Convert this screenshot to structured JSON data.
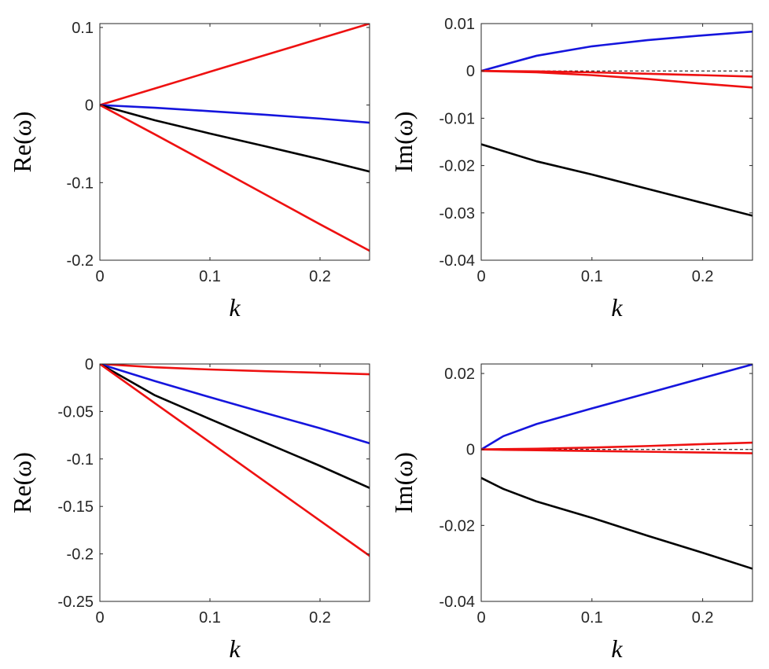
{
  "colors": {
    "red": "#ee1111",
    "blue": "#1515dd",
    "black": "#000000",
    "axis": "#262626",
    "zero": "#000000"
  },
  "chart_data": [
    {
      "type": "line",
      "id": "top-left",
      "xlabel": "k",
      "ylabel": "Re(ω)",
      "xlim": [
        0,
        0.245
      ],
      "ylim": [
        -0.2,
        0.105
      ],
      "xticks": [
        0,
        0.1,
        0.2
      ],
      "xtick_labels": [
        "0",
        "0.1",
        "0.2"
      ],
      "yticks": [
        -0.2,
        -0.1,
        0,
        0.1
      ],
      "ytick_labels": [
        "-0.2",
        "-0.1",
        "0",
        "0.1"
      ],
      "x": [
        0,
        0.05,
        0.1,
        0.15,
        0.2,
        0.245
      ],
      "series": [
        {
          "name": "red-upper",
          "color": "red",
          "values": [
            0,
            0.0214,
            0.0429,
            0.0643,
            0.0857,
            0.105
          ]
        },
        {
          "name": "blue",
          "color": "blue",
          "values": [
            0,
            -0.0035,
            -0.0079,
            -0.0125,
            -0.0175,
            -0.0227
          ]
        },
        {
          "name": "black",
          "color": "black",
          "values": [
            0,
            -0.0196,
            -0.0367,
            -0.0531,
            -0.0698,
            -0.0857
          ]
        },
        {
          "name": "red-lower",
          "color": "red",
          "values": [
            0,
            -0.0378,
            -0.0763,
            -0.115,
            -0.1537,
            -0.1878
          ]
        }
      ]
    },
    {
      "type": "line",
      "id": "top-right",
      "xlabel": "k",
      "ylabel": "Im(ω)",
      "xlim": [
        0,
        0.245
      ],
      "ylim": [
        -0.04,
        0.01
      ],
      "xticks": [
        0,
        0.1,
        0.2
      ],
      "xtick_labels": [
        "0",
        "0.1",
        "0.2"
      ],
      "yticks": [
        -0.04,
        -0.03,
        -0.02,
        -0.01,
        0,
        0.01
      ],
      "ytick_labels": [
        "-0.04",
        "-0.03",
        "-0.02",
        "-0.01",
        "0",
        "0.01"
      ],
      "zero_line": true,
      "x": [
        0,
        0.05,
        0.1,
        0.15,
        0.2,
        0.245
      ],
      "series": [
        {
          "name": "blue",
          "color": "blue",
          "values": [
            0,
            0.0032,
            0.0052,
            0.0065,
            0.0075,
            0.0083
          ]
        },
        {
          "name": "red-upper",
          "color": "red",
          "values": [
            0,
            -0.0001,
            -0.0003,
            -0.0006,
            -0.0009,
            -0.0012
          ]
        },
        {
          "name": "red-lower",
          "color": "red",
          "values": [
            0,
            -0.0003,
            -0.0009,
            -0.0017,
            -0.0027,
            -0.0035
          ]
        },
        {
          "name": "black",
          "color": "black",
          "values": [
            -0.0155,
            -0.0191,
            -0.0219,
            -0.0249,
            -0.0279,
            -0.0306
          ]
        }
      ]
    },
    {
      "type": "line",
      "id": "bottom-left",
      "xlabel": "k",
      "ylabel": "Re(ω)",
      "xlim": [
        0,
        0.245
      ],
      "ylim": [
        -0.25,
        0
      ],
      "xticks": [
        0,
        0.1,
        0.2
      ],
      "xtick_labels": [
        "0",
        "0.1",
        "0.2"
      ],
      "yticks": [
        -0.25,
        -0.2,
        -0.15,
        -0.1,
        -0.05,
        0
      ],
      "ytick_labels": [
        "-0.25",
        "-0.2",
        "-0.15",
        "-0.1",
        "-0.05",
        "0"
      ],
      "x": [
        0,
        0.05,
        0.1,
        0.15,
        0.2,
        0.245
      ],
      "series": [
        {
          "name": "red-upper",
          "color": "red",
          "values": [
            0,
            -0.0035,
            -0.0058,
            -0.0076,
            -0.0093,
            -0.0108
          ]
        },
        {
          "name": "blue",
          "color": "blue",
          "values": [
            0,
            -0.018,
            -0.035,
            -0.0515,
            -0.0677,
            -0.0835
          ]
        },
        {
          "name": "black",
          "color": "black",
          "values": [
            0,
            -0.033,
            -0.058,
            -0.0827,
            -0.1073,
            -0.1305
          ]
        },
        {
          "name": "red-lower",
          "color": "red",
          "values": [
            0,
            -0.0413,
            -0.0825,
            -0.1238,
            -0.165,
            -0.202
          ]
        }
      ]
    },
    {
      "type": "line",
      "id": "bottom-right",
      "xlabel": "k",
      "ylabel": "Im(ω)",
      "xlim": [
        0,
        0.245
      ],
      "ylim": [
        -0.04,
        0.0225
      ],
      "xticks": [
        0,
        0.1,
        0.2
      ],
      "xtick_labels": [
        "0",
        "0.1",
        "0.2"
      ],
      "yticks": [
        -0.04,
        -0.02,
        0,
        0.02
      ],
      "ytick_labels": [
        "-0.04",
        "-0.02",
        "0",
        "0.02"
      ],
      "zero_line": true,
      "x": [
        0,
        0.02,
        0.05,
        0.1,
        0.15,
        0.2,
        0.245
      ],
      "series": [
        {
          "name": "blue",
          "color": "blue",
          "values": [
            0,
            0.0035,
            0.0067,
            0.0108,
            0.0148,
            0.0188,
            0.0224
          ]
        },
        {
          "name": "red-upper",
          "color": "red",
          "values": [
            0,
            0.0001,
            0.0002,
            0.0005,
            0.0009,
            0.0014,
            0.0018
          ]
        },
        {
          "name": "red-lower",
          "color": "red",
          "values": [
            0,
            -0.0001,
            -0.0002,
            -0.0004,
            -0.0006,
            -0.0008,
            -0.001
          ]
        },
        {
          "name": "black",
          "color": "black",
          "values": [
            -0.0075,
            -0.0104,
            -0.0137,
            -0.018,
            -0.0227,
            -0.0272,
            -0.0314
          ]
        }
      ]
    }
  ]
}
